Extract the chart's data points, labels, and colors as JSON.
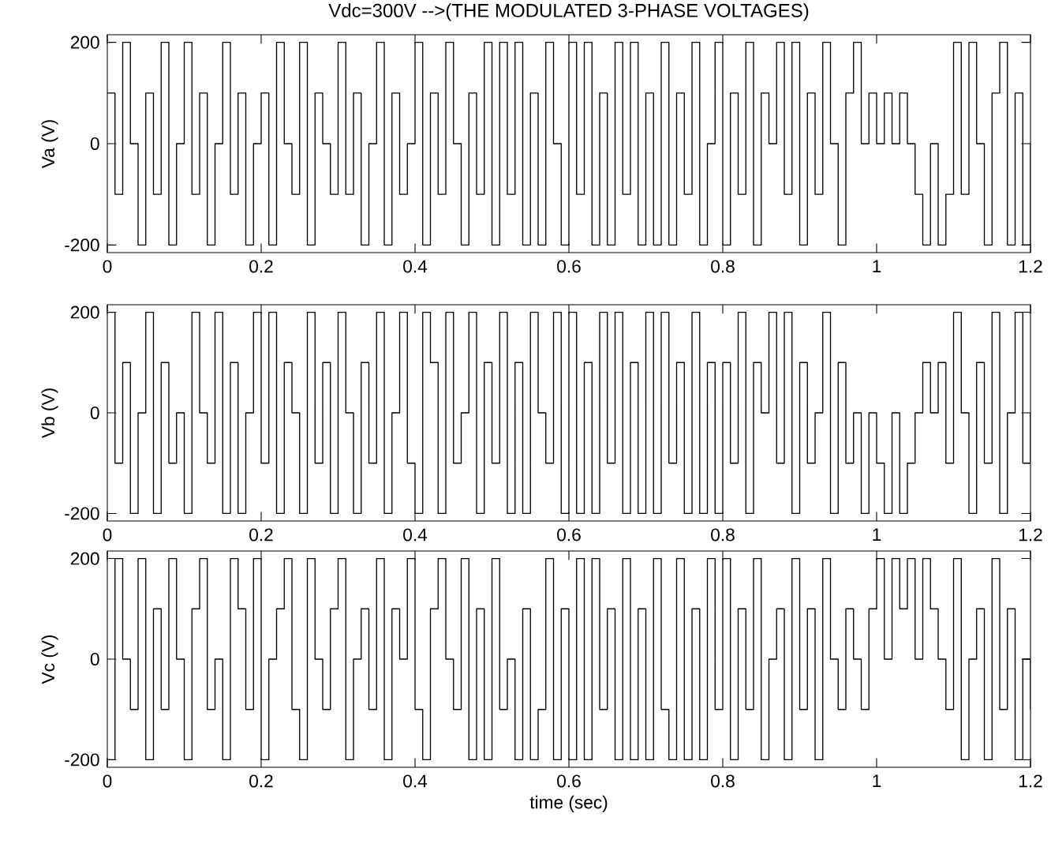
{
  "chart_data": [
    {
      "type": "step",
      "title": "Vdc=300V -->(THE MODULATED 3-PHASE VOLTAGES)",
      "ylabel": "Va (V)",
      "x": [
        0,
        0.01,
        0.02,
        0.03,
        0.04,
        0.05,
        0.06,
        0.07,
        0.08,
        0.09,
        0.1,
        0.11,
        0.12,
        0.13,
        0.14,
        0.15,
        0.16,
        0.17,
        0.18,
        0.19,
        0.2,
        0.21,
        0.22,
        0.23,
        0.24,
        0.25,
        0.26,
        0.27,
        0.28,
        0.29,
        0.3,
        0.31,
        0.32,
        0.33,
        0.34,
        0.35,
        0.36,
        0.37,
        0.38,
        0.39,
        0.4,
        0.41,
        0.42,
        0.43,
        0.44,
        0.45,
        0.46,
        0.47,
        0.48,
        0.49,
        0.5,
        0.51,
        0.52,
        0.53,
        0.54,
        0.55,
        0.56,
        0.57,
        0.58,
        0.59,
        0.6,
        0.61,
        0.62,
        0.63,
        0.64,
        0.65,
        0.66,
        0.67,
        0.68,
        0.69,
        0.7,
        0.71,
        0.72,
        0.73,
        0.74,
        0.75,
        0.76,
        0.77,
        0.78,
        0.79,
        0.8,
        0.81,
        0.82,
        0.83,
        0.84,
        0.85,
        0.86,
        0.87,
        0.88,
        0.89,
        0.9,
        0.91,
        0.92,
        0.93,
        0.94,
        0.95,
        0.96,
        0.97,
        0.98,
        0.99,
        1,
        1.01,
        1.02,
        1.03,
        1.04,
        1.05,
        1.06,
        1.07,
        1.08,
        1.09,
        1.1,
        1.11,
        1.12,
        1.13,
        1.14,
        1.15,
        1.16,
        1.17,
        1.18,
        1.19,
        1.2
      ],
      "series": [
        {
          "color": "#000000",
          "values": [
            100,
            -100,
            200,
            0,
            -200,
            100,
            -100,
            200,
            -200,
            0,
            200,
            -100,
            100,
            -200,
            0,
            200,
            -100,
            100,
            -200,
            0,
            100,
            -200,
            200,
            0,
            -100,
            200,
            -200,
            100,
            0,
            -100,
            200,
            -100,
            100,
            -200,
            0,
            200,
            -200,
            100,
            -100,
            0,
            200,
            -200,
            100,
            -100,
            200,
            0,
            -200,
            100,
            -100,
            200,
            -200,
            200,
            -100,
            200,
            -200,
            100,
            -200,
            200,
            0,
            -200,
            200,
            -100,
            200,
            -200,
            100,
            -200,
            200,
            -100,
            200,
            -200,
            100,
            -200,
            200,
            -200,
            100,
            -100,
            200,
            -200,
            0,
            200,
            -200,
            100,
            -100,
            200,
            -200,
            100,
            0,
            200,
            -100,
            200,
            -200,
            100,
            -100,
            200,
            0,
            -200,
            100,
            200,
            0,
            100,
            0,
            100,
            0,
            100,
            0,
            -100,
            -200,
            0,
            -200,
            -100,
            200,
            -100,
            200,
            0,
            -200,
            100,
            200,
            -200,
            100,
            -200,
            0
          ]
        }
      ],
      "xlim": [
        0,
        1.2
      ],
      "ylim": [
        -215,
        215
      ],
      "xticks": [
        0,
        0.2,
        0.4,
        0.6,
        0.8,
        1,
        1.2
      ],
      "yticks": [
        -200,
        0,
        200
      ]
    },
    {
      "type": "step",
      "ylabel": "Vb (V)",
      "x": [
        0,
        0.01,
        0.02,
        0.03,
        0.04,
        0.05,
        0.06,
        0.07,
        0.08,
        0.09,
        0.1,
        0.11,
        0.12,
        0.13,
        0.14,
        0.15,
        0.16,
        0.17,
        0.18,
        0.19,
        0.2,
        0.21,
        0.22,
        0.23,
        0.24,
        0.25,
        0.26,
        0.27,
        0.28,
        0.29,
        0.3,
        0.31,
        0.32,
        0.33,
        0.34,
        0.35,
        0.36,
        0.37,
        0.38,
        0.39,
        0.4,
        0.41,
        0.42,
        0.43,
        0.44,
        0.45,
        0.46,
        0.47,
        0.48,
        0.49,
        0.5,
        0.51,
        0.52,
        0.53,
        0.54,
        0.55,
        0.56,
        0.57,
        0.58,
        0.59,
        0.6,
        0.61,
        0.62,
        0.63,
        0.64,
        0.65,
        0.66,
        0.67,
        0.68,
        0.69,
        0.7,
        0.71,
        0.72,
        0.73,
        0.74,
        0.75,
        0.76,
        0.77,
        0.78,
        0.79,
        0.8,
        0.81,
        0.82,
        0.83,
        0.84,
        0.85,
        0.86,
        0.87,
        0.88,
        0.89,
        0.9,
        0.91,
        0.92,
        0.93,
        0.94,
        0.95,
        0.96,
        0.97,
        0.98,
        0.99,
        1,
        1.01,
        1.02,
        1.03,
        1.04,
        1.05,
        1.06,
        1.07,
        1.08,
        1.09,
        1.1,
        1.11,
        1.12,
        1.13,
        1.14,
        1.15,
        1.16,
        1.17,
        1.18,
        1.19,
        1.2
      ],
      "series": [
        {
          "color": "#000000",
          "values": [
            200,
            -100,
            100,
            -200,
            0,
            200,
            -200,
            100,
            -100,
            0,
            -200,
            200,
            0,
            -100,
            200,
            -200,
            100,
            -200,
            0,
            200,
            -100,
            200,
            -200,
            100,
            0,
            -200,
            200,
            -100,
            100,
            -200,
            200,
            0,
            -200,
            100,
            -100,
            200,
            -200,
            0,
            200,
            -100,
            -200,
            200,
            100,
            -200,
            200,
            -100,
            0,
            200,
            -200,
            100,
            -100,
            200,
            -200,
            100,
            -200,
            200,
            0,
            -100,
            200,
            -200,
            200,
            -200,
            100,
            -200,
            200,
            -100,
            200,
            -200,
            100,
            -200,
            200,
            -200,
            200,
            -100,
            100,
            -200,
            200,
            -200,
            100,
            -200,
            100,
            -100,
            200,
            -200,
            100,
            0,
            200,
            -100,
            200,
            -200,
            100,
            -100,
            0,
            200,
            -200,
            100,
            -100,
            0,
            -200,
            0,
            -100,
            -200,
            0,
            -200,
            -100,
            0,
            100,
            0,
            100,
            -100,
            200,
            0,
            -200,
            100,
            -100,
            200,
            -200,
            0,
            200,
            -100,
            0
          ]
        }
      ],
      "xlim": [
        0,
        1.2
      ],
      "ylim": [
        -215,
        215
      ],
      "xticks": [
        0,
        0.2,
        0.4,
        0.6,
        0.8,
        1,
        1.2
      ],
      "yticks": [
        -200,
        0,
        200
      ]
    },
    {
      "type": "step",
      "xlabel": "time (sec)",
      "ylabel": "Vc (V)",
      "x": [
        0,
        0.01,
        0.02,
        0.03,
        0.04,
        0.05,
        0.06,
        0.07,
        0.08,
        0.09,
        0.1,
        0.11,
        0.12,
        0.13,
        0.14,
        0.15,
        0.16,
        0.17,
        0.18,
        0.19,
        0.2,
        0.21,
        0.22,
        0.23,
        0.24,
        0.25,
        0.26,
        0.27,
        0.28,
        0.29,
        0.3,
        0.31,
        0.32,
        0.33,
        0.34,
        0.35,
        0.36,
        0.37,
        0.38,
        0.39,
        0.4,
        0.41,
        0.42,
        0.43,
        0.44,
        0.45,
        0.46,
        0.47,
        0.48,
        0.49,
        0.5,
        0.51,
        0.52,
        0.53,
        0.54,
        0.55,
        0.56,
        0.57,
        0.58,
        0.59,
        0.6,
        0.61,
        0.62,
        0.63,
        0.64,
        0.65,
        0.66,
        0.67,
        0.68,
        0.69,
        0.7,
        0.71,
        0.72,
        0.73,
        0.74,
        0.75,
        0.76,
        0.77,
        0.78,
        0.79,
        0.8,
        0.81,
        0.82,
        0.83,
        0.84,
        0.85,
        0.86,
        0.87,
        0.88,
        0.89,
        0.9,
        0.91,
        0.92,
        0.93,
        0.94,
        0.95,
        0.96,
        0.97,
        0.98,
        0.99,
        1,
        1.01,
        1.02,
        1.03,
        1.04,
        1.05,
        1.06,
        1.07,
        1.08,
        1.09,
        1.1,
        1.11,
        1.12,
        1.13,
        1.14,
        1.15,
        1.16,
        1.17,
        1.18,
        1.19,
        1.2
      ],
      "series": [
        {
          "color": "#000000",
          "values": [
            -200,
            200,
            0,
            -100,
            200,
            -200,
            100,
            -100,
            200,
            0,
            -200,
            100,
            200,
            -100,
            0,
            -200,
            200,
            100,
            -100,
            200,
            -200,
            0,
            100,
            200,
            -100,
            -200,
            200,
            0,
            -100,
            100,
            200,
            -200,
            0,
            100,
            -100,
            200,
            -200,
            100,
            0,
            200,
            -100,
            -200,
            100,
            200,
            0,
            -100,
            200,
            -200,
            100,
            -200,
            200,
            -100,
            0,
            -200,
            100,
            -200,
            -100,
            200,
            -200,
            100,
            -200,
            200,
            -200,
            200,
            -100,
            100,
            -200,
            200,
            -200,
            100,
            -200,
            200,
            -100,
            -200,
            200,
            -200,
            100,
            -200,
            200,
            -100,
            200,
            -200,
            100,
            -100,
            200,
            -200,
            0,
            100,
            -200,
            200,
            -100,
            100,
            -200,
            200,
            0,
            -100,
            100,
            0,
            -100,
            100,
            200,
            0,
            200,
            100,
            200,
            0,
            200,
            100,
            0,
            -100,
            200,
            -200,
            0,
            100,
            -200,
            200,
            -100,
            100,
            -200,
            0,
            -100
          ]
        }
      ],
      "xlim": [
        0,
        1.2
      ],
      "ylim": [
        -215,
        215
      ],
      "xticks": [
        0,
        0.2,
        0.4,
        0.6,
        0.8,
        1,
        1.2
      ],
      "yticks": [
        -200,
        0,
        200
      ]
    }
  ]
}
